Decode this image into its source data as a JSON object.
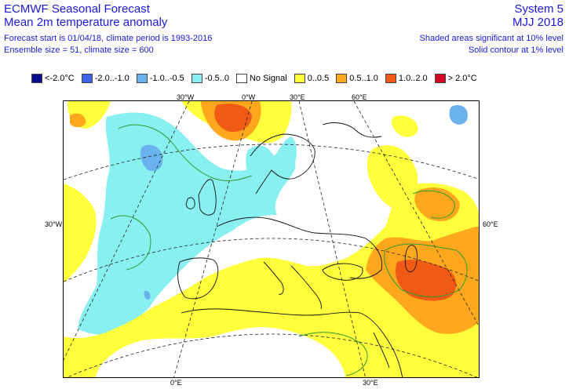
{
  "header": {
    "title": "ECMWF Seasonal Forecast",
    "subtitle": "Mean 2m temperature anomaly",
    "forecast_info": "Forecast start is 01/04/18, climate period is 1993-2016",
    "ensemble_info": "Ensemble size = 51, climate size = 600",
    "system": "System 5",
    "period": "MJJ 2018",
    "significance_shaded": "Shaded areas significant at 10% level",
    "significance_contour": "Solid contour at 1% level"
  },
  "legend": [
    {
      "label": "<-2.0°C",
      "color": "#0a0a8c"
    },
    {
      "label": "-2.0..-1.0",
      "color": "#3c64e6"
    },
    {
      "label": "-1.0..-0.5",
      "color": "#6ab2ee"
    },
    {
      "label": "-0.5..0",
      "color": "#88f0f0"
    },
    {
      "label": "No Signal",
      "color": "#ffffff"
    },
    {
      "label": "0..0.5",
      "color": "#ffff3c"
    },
    {
      "label": "0.5..1.0",
      "color": "#ffa81e"
    },
    {
      "label": "1.0..2.0",
      "color": "#f05a14"
    },
    {
      "label": "> 2.0°C",
      "color": "#d20a28"
    }
  ],
  "map": {
    "axis_labels": {
      "top": [
        "30°W",
        "0°W",
        "30°E",
        "60°E"
      ],
      "left": "30°W",
      "right": "60°E",
      "bottom": [
        "0°E",
        "30°E"
      ]
    }
  }
}
